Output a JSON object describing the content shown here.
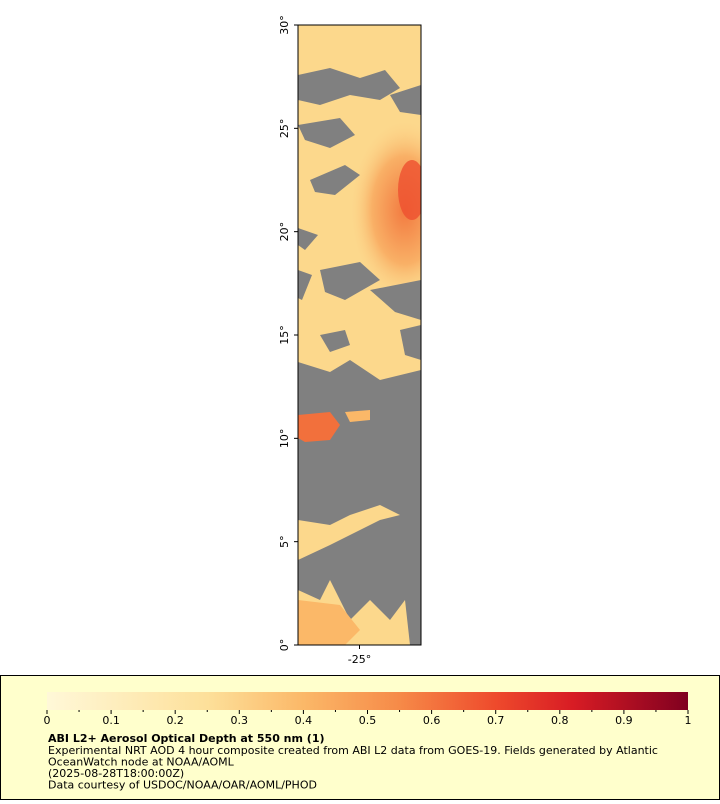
{
  "map": {
    "xlim": [
      -28,
      -22
    ],
    "ylim": [
      0,
      30
    ],
    "xticks": [
      {
        "value": -25,
        "label": "-25°"
      }
    ],
    "yticks": [
      {
        "value": 0,
        "label": "0°"
      },
      {
        "value": 5,
        "label": "5°"
      },
      {
        "value": 10,
        "label": "10°"
      },
      {
        "value": 15,
        "label": "15°"
      },
      {
        "value": 20,
        "label": "20°"
      },
      {
        "value": 25,
        "label": "25°"
      },
      {
        "value": 30,
        "label": "30°"
      }
    ]
  },
  "colorbar": {
    "lim": [
      0,
      1
    ],
    "ticks": [
      0,
      0.1,
      0.2,
      0.3,
      0.4,
      0.5,
      0.6,
      0.7,
      0.8,
      0.9,
      1
    ]
  },
  "legend": {
    "title": "ABI L2+ Aerosol Optical Depth at 550 nm (1)",
    "lines": [
      "Experimental NRT AOD 4 hour composite created from ABI L2 data from GOES-19. Fields generated by Atlantic",
      "OceanWatch node at NOAA/AOML",
      "(2025-08-28T18:00:00Z)",
      "Data courtesy of USDOC/NOAA/OAR/AOML/PHOD"
    ]
  }
}
